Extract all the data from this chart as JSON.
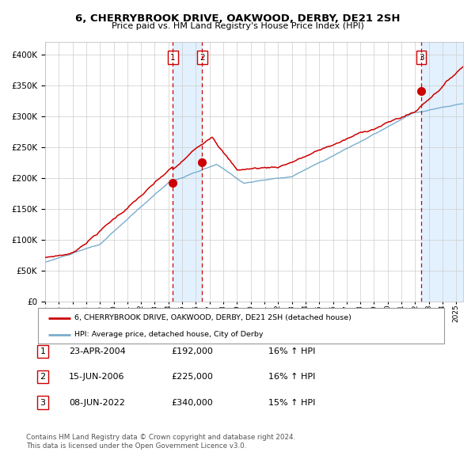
{
  "title": "6, CHERRYBROOK DRIVE, OAKWOOD, DERBY, DE21 2SH",
  "subtitle": "Price paid vs. HM Land Registry's House Price Index (HPI)",
  "legend_entry1": "6, CHERRYBROOK DRIVE, OAKWOOD, DERBY, DE21 2SH (detached house)",
  "legend_entry2": "HPI: Average price, detached house, City of Derby",
  "red_color": "#cc0000",
  "blue_color": "#7aadcc",
  "bg_color": "#ffffff",
  "grid_color": "#cccccc",
  "shade_color": "#ddeeff",
  "sale1_date_num": 2004.31,
  "sale1_price": 192000,
  "sale2_date_num": 2006.46,
  "sale2_price": 225000,
  "sale3_date_num": 2022.44,
  "sale3_price": 340000,
  "table_data": [
    {
      "num": "1",
      "date": "23-APR-2004",
      "price": "£192,000",
      "change": "16% ↑ HPI"
    },
    {
      "num": "2",
      "date": "15-JUN-2006",
      "price": "£225,000",
      "change": "16% ↑ HPI"
    },
    {
      "num": "3",
      "date": "08-JUN-2022",
      "price": "£340,000",
      "change": "15% ↑ HPI"
    }
  ],
  "footnote1": "Contains HM Land Registry data © Crown copyright and database right 2024.",
  "footnote2": "This data is licensed under the Open Government Licence v3.0.",
  "ylim_max": 420000,
  "xlim_start": 1995.0,
  "xlim_end": 2025.5
}
